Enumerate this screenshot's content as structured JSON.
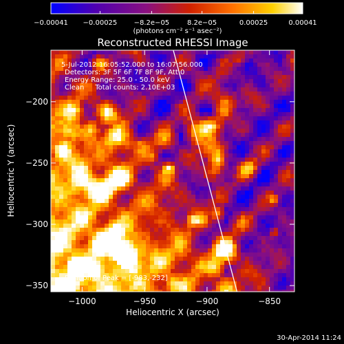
{
  "chart_data": {
    "type": "heatmap",
    "title": "Reconstructed RHESSI Image",
    "xlabel": "Heliocentric X (arcsec)",
    "ylabel": "Heliocentric Y (arcsec)",
    "xlim": [
      -1025,
      -830
    ],
    "ylim": [
      -355,
      -158
    ],
    "x_ticks": [
      -1000,
      -950,
      -900,
      -850
    ],
    "y_ticks": [
      -200,
      -250,
      -300,
      -350
    ],
    "x_tick_labels": [
      "−1000",
      "−950",
      "−900",
      "−850"
    ],
    "y_tick_labels": [
      "−200",
      "−250",
      "−300",
      "−350"
    ],
    "colorbar": {
      "min": -0.00041,
      "max": 0.00041,
      "ticks": [
        -0.00041,
        -0.00025,
        -8.2e-05,
        8.2e-05,
        0.00025,
        0.00041
      ],
      "tick_labels": [
        "−0.00041",
        "−0.00025",
        "−8.2e−05",
        "8.2e−05",
        "0.00025",
        "0.00041"
      ],
      "unit_label": "(photons cm⁻² s⁻¹ asec⁻²)",
      "colors": [
        "#0000ff",
        "#5000b0",
        "#8a1080",
        "#d02000",
        "#ff7000",
        "#ffd000",
        "#ffffff"
      ]
    },
    "info_lines": [
      "5-Jul-2012 16:05:52.000 to 16:07:56.000",
      "Detectors: 3F 5F 6F 7F 8F 9F, Att 0",
      "Energy Range: 25.0 - 50.0 keV",
      "Clean     Total counts: 2.10E+03"
    ],
    "peak_label": "Position of Peak = [-983,-232]",
    "limb_line": {
      "from": [
        -927,
        -158
      ],
      "to": [
        -876,
        -355
      ]
    },
    "grid": false
  },
  "footer": {
    "timestamp": "30-Apr-2014 11:24"
  }
}
